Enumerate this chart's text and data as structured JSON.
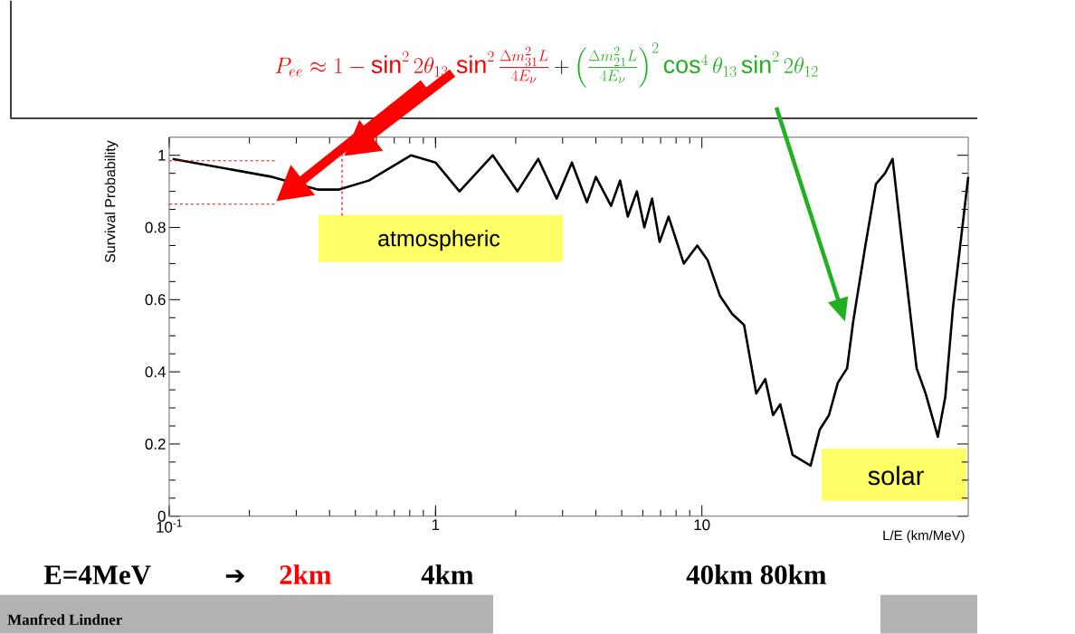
{
  "chart_data": {
    "type": "line",
    "xlabel": "L/E (km/MeV)",
    "ylabel": "Survival Probability",
    "x": [
      0.103,
      0.244,
      0.36,
      0.434,
      0.562,
      0.81,
      1.0,
      1.23,
      1.64,
      2.03,
      2.43,
      2.85,
      3.25,
      3.7,
      4.0,
      4.56,
      4.93,
      5.27,
      5.7,
      6.08,
      6.5,
      6.94,
      7.5,
      8.55,
      9.61,
      10.5,
      11.7,
      13.0,
      14.4,
      16.0,
      17.3,
      18.5,
      19.7,
      21.9,
      25.6,
      27.7,
      30.0,
      32.4,
      35.1,
      37.0,
      41.1,
      45.0,
      48.7,
      52.0,
      56.2,
      64.0,
      69.2,
      76.9,
      82.0,
      87.7,
      100
    ],
    "series": [
      {
        "color": "#000000",
        "values": [
          0.99,
          0.94,
          0.905,
          0.905,
          0.93,
          1.0,
          0.98,
          0.9,
          1.0,
          0.9,
          0.99,
          0.88,
          0.98,
          0.87,
          0.94,
          0.86,
          0.93,
          0.83,
          0.9,
          0.8,
          0.88,
          0.76,
          0.83,
          0.7,
          0.75,
          0.71,
          0.61,
          0.56,
          0.53,
          0.34,
          0.38,
          0.28,
          0.31,
          0.17,
          0.14,
          0.24,
          0.28,
          0.37,
          0.41,
          0.54,
          0.75,
          0.92,
          0.95,
          0.99,
          0.77,
          0.41,
          0.34,
          0.22,
          0.33,
          0.58,
          0.94
        ]
      }
    ],
    "xlim": [
      0.1,
      100
    ],
    "ylim": [
      0,
      1.05
    ],
    "xticks": [
      {
        "value": 0.1,
        "label": "10$^{-1}$"
      },
      1,
      10
    ],
    "yticks": [
      0,
      0.2,
      0.4,
      0.6,
      0.8,
      1
    ],
    "log": "x",
    "grid": false,
    "marker": "none",
    "line_style": "solid",
    "annotations": [
      "P_{ee} \\approx 1-\\sin^2 2\\theta_{13}\\,\\sin^2\\frac{\\Delta m^2_{31}L}{4E_\\nu}",
      "+",
      "\\left(\\frac{\\Delta m^2_{21}L}{4E_\\nu}\\right)^2\\cos^4\\theta_{13}\\sin^2 2\\theta_{12}",
      "atmospheric",
      "solar",
      "E=4MeV",
      "➔",
      "2km",
      "4km",
      "40km 80km",
      "Manfred Lindner"
    ]
  }
}
